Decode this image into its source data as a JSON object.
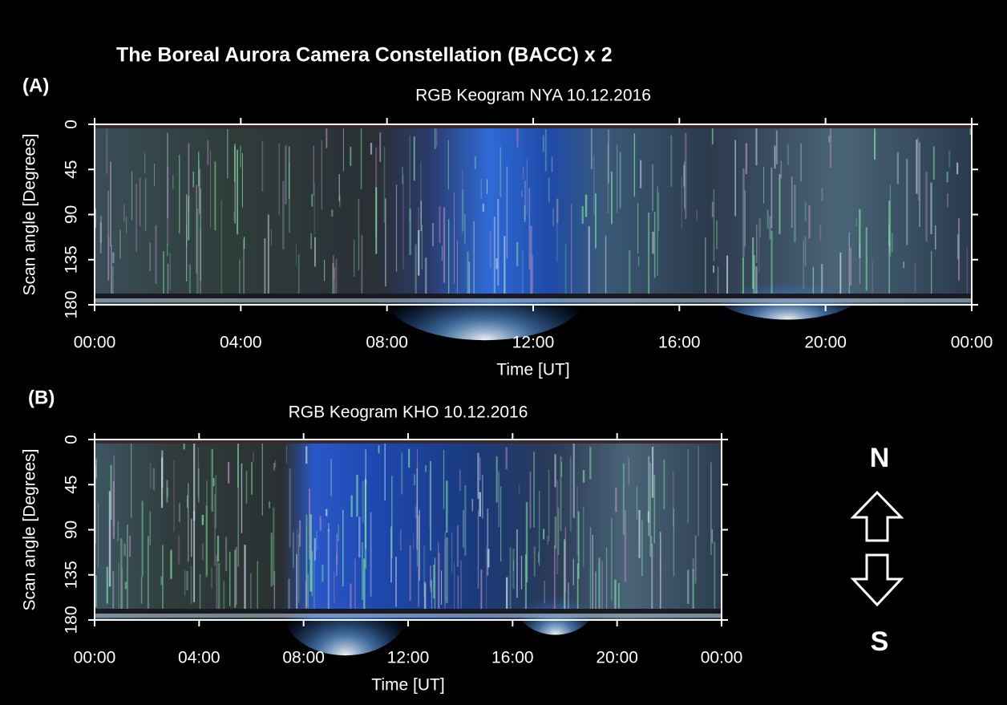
{
  "title": "The Boreal Aurora Camera Constellation (BACC) x 2",
  "compass": {
    "north": "N",
    "south": "S"
  },
  "chart_data": [
    {
      "type": "keogram",
      "panel_label": "(A)",
      "title": "RGB Keogram NYA 10.12.2016",
      "x_label": "Time [UT]",
      "y_label": "Scan angle [Degrees]",
      "xlim": [
        0,
        24
      ],
      "xticks": [
        {
          "value": 0,
          "label": "00:00"
        },
        {
          "value": 4,
          "label": "04:00"
        },
        {
          "value": 8,
          "label": "08:00"
        },
        {
          "value": 12,
          "label": "12:00"
        },
        {
          "value": 16,
          "label": "16:00"
        },
        {
          "value": 20,
          "label": "20:00"
        },
        {
          "value": 24,
          "label": "00:00"
        }
      ],
      "ylim": [
        0,
        180
      ],
      "yticks": [
        0,
        45,
        90,
        135,
        180
      ],
      "y_inverted": true
    },
    {
      "type": "keogram",
      "panel_label": "(B)",
      "title": "RGB Keogram KHO 10.12.2016",
      "x_label": "Time [UT]",
      "y_label": "Scan angle [Degrees]",
      "xlim": [
        0,
        24
      ],
      "xticks": [
        {
          "value": 0,
          "label": "00:00"
        },
        {
          "value": 4,
          "label": "04:00"
        },
        {
          "value": 8,
          "label": "08:00"
        },
        {
          "value": 12,
          "label": "12:00"
        },
        {
          "value": 16,
          "label": "16:00"
        },
        {
          "value": 20,
          "label": "20:00"
        },
        {
          "value": 24,
          "label": "00:00"
        }
      ],
      "ylim": [
        0,
        180
      ],
      "yticks": [
        0,
        45,
        90,
        135,
        180
      ],
      "y_inverted": true
    }
  ]
}
